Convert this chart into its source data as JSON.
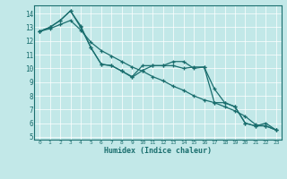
{
  "xlabel": "Humidex (Indice chaleur)",
  "background_color": "#c2e8e8",
  "grid_color": "#ffffff",
  "line_color": "#1a6e6e",
  "xlim": [
    -0.5,
    23.5
  ],
  "ylim": [
    4.8,
    14.6
  ],
  "yticks": [
    5,
    6,
    7,
    8,
    9,
    10,
    11,
    12,
    13,
    14
  ],
  "xticks": [
    0,
    1,
    2,
    3,
    4,
    5,
    6,
    7,
    8,
    9,
    10,
    11,
    12,
    13,
    14,
    15,
    16,
    17,
    18,
    19,
    20,
    21,
    22,
    23
  ],
  "line1_x": [
    0,
    1,
    2,
    3,
    4,
    5,
    6,
    7,
    8,
    9,
    10,
    11,
    12,
    13,
    14,
    15,
    16,
    17,
    18,
    19,
    20,
    21,
    22,
    23
  ],
  "line1_y": [
    12.7,
    13.0,
    13.5,
    14.2,
    13.0,
    11.5,
    10.3,
    10.2,
    9.8,
    9.4,
    10.2,
    10.2,
    10.2,
    10.5,
    10.5,
    10.0,
    10.1,
    8.5,
    7.5,
    7.2,
    6.0,
    5.8,
    6.0,
    5.5
  ],
  "line2_x": [
    0,
    1,
    2,
    3,
    4,
    5,
    6,
    7,
    8,
    9,
    10,
    11,
    12,
    13,
    14,
    15,
    16,
    17,
    18,
    19,
    20,
    21,
    22,
    23
  ],
  "line2_y": [
    12.7,
    13.0,
    13.5,
    14.2,
    13.1,
    11.5,
    10.3,
    10.2,
    9.8,
    9.35,
    9.85,
    10.2,
    10.2,
    10.2,
    10.0,
    10.1,
    10.1,
    7.5,
    7.5,
    7.2,
    6.0,
    5.8,
    5.8,
    5.5
  ],
  "line3_x": [
    0,
    1,
    2,
    3,
    4,
    5,
    6,
    7,
    8,
    9,
    10,
    11,
    12,
    13,
    14,
    15,
    16,
    17,
    18,
    19,
    20,
    21,
    22,
    23
  ],
  "line3_y": [
    12.7,
    12.9,
    13.2,
    13.5,
    12.8,
    11.9,
    11.3,
    10.9,
    10.5,
    10.1,
    9.8,
    9.4,
    9.1,
    8.7,
    8.4,
    8.0,
    7.7,
    7.5,
    7.2,
    6.9,
    6.5,
    5.9,
    5.8,
    5.5
  ]
}
